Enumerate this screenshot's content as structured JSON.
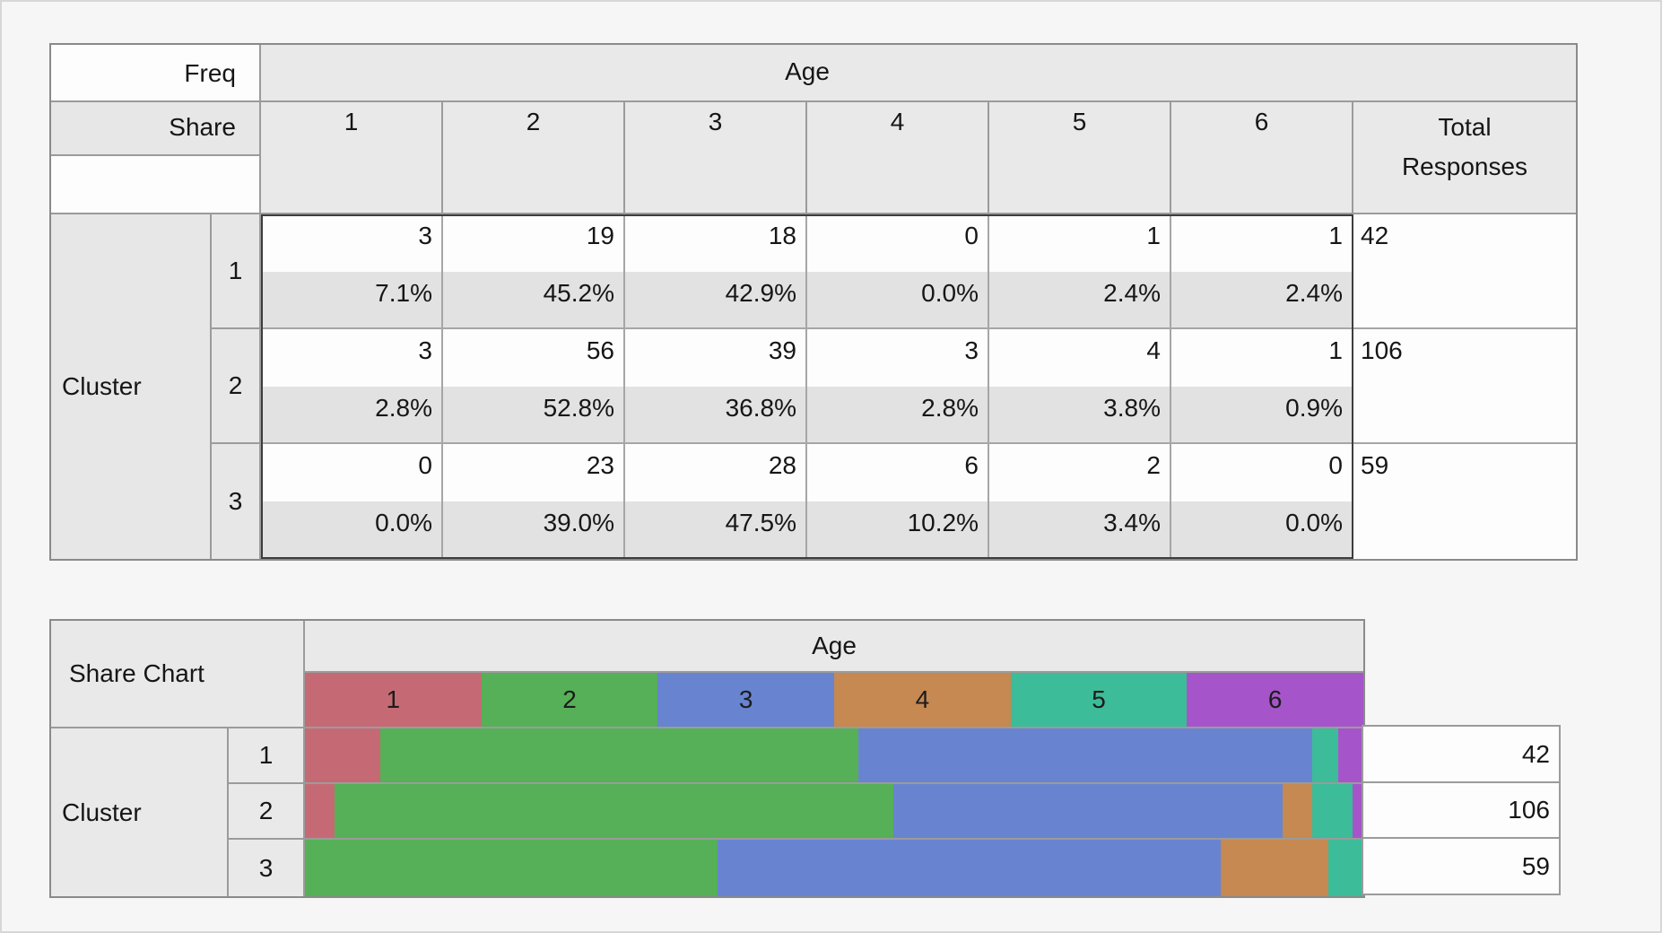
{
  "ui": {
    "freq_label": "Freq",
    "share_label": "Share",
    "age_label": "Age",
    "cluster_label": "Cluster",
    "total_header_line1": "Total",
    "total_header_line2": "Responses",
    "share_chart_label": "Share Chart"
  },
  "colors": {
    "age_1": "#c56a74",
    "age_2": "#55b057",
    "age_3": "#6884d1",
    "age_4": "#c58951",
    "age_5": "#3cbc98",
    "age_6": "#a555c9",
    "header_gray": "#e9e9e9",
    "share_row_gray": "#e2e2e2"
  },
  "chart_data": [
    {
      "type": "table",
      "title": "Freq / Share crosstab of Cluster by Age",
      "row_dim": "Cluster",
      "col_dim": "Age",
      "col_headers": [
        "1",
        "2",
        "3",
        "4",
        "5",
        "6"
      ],
      "total_col_header": "Total Responses",
      "rows": [
        {
          "cluster": "1",
          "freq": [
            "3",
            "19",
            "18",
            "0",
            "1",
            "1"
          ],
          "share": [
            "7.1%",
            "45.2%",
            "42.9%",
            "0.0%",
            "2.4%",
            "2.4%"
          ],
          "total": "42"
        },
        {
          "cluster": "2",
          "freq": [
            "3",
            "56",
            "39",
            "3",
            "4",
            "1"
          ],
          "share": [
            "2.8%",
            "52.8%",
            "36.8%",
            "2.8%",
            "3.8%",
            "0.9%"
          ],
          "total": "106"
        },
        {
          "cluster": "3",
          "freq": [
            "0",
            "23",
            "28",
            "6",
            "2",
            "0"
          ],
          "share": [
            "0.0%",
            "39.0%",
            "47.5%",
            "10.2%",
            "3.4%",
            "0.0%"
          ],
          "total": "59"
        }
      ]
    },
    {
      "type": "bar",
      "subtype": "stacked-horizontal-100pct",
      "title": "Share Chart",
      "group_header": "Age",
      "row_dim": "Cluster",
      "categories": [
        "1",
        "2",
        "3"
      ],
      "legend_position": "top",
      "series": [
        {
          "name": "1",
          "color": "#c56a74",
          "values": [
            7.1,
            2.8,
            0.0
          ]
        },
        {
          "name": "2",
          "color": "#55b057",
          "values": [
            45.2,
            52.8,
            39.0
          ]
        },
        {
          "name": "3",
          "color": "#6884d1",
          "values": [
            42.9,
            36.8,
            47.5
          ]
        },
        {
          "name": "4",
          "color": "#c58951",
          "values": [
            0.0,
            2.8,
            10.2
          ]
        },
        {
          "name": "5",
          "color": "#3cbc98",
          "values": [
            2.4,
            3.8,
            3.4
          ]
        },
        {
          "name": "6",
          "color": "#a555c9",
          "values": [
            2.4,
            0.9,
            0.0
          ]
        }
      ],
      "totals": [
        "42",
        "106",
        "59"
      ],
      "xlim_pct": [
        0,
        100
      ]
    }
  ]
}
